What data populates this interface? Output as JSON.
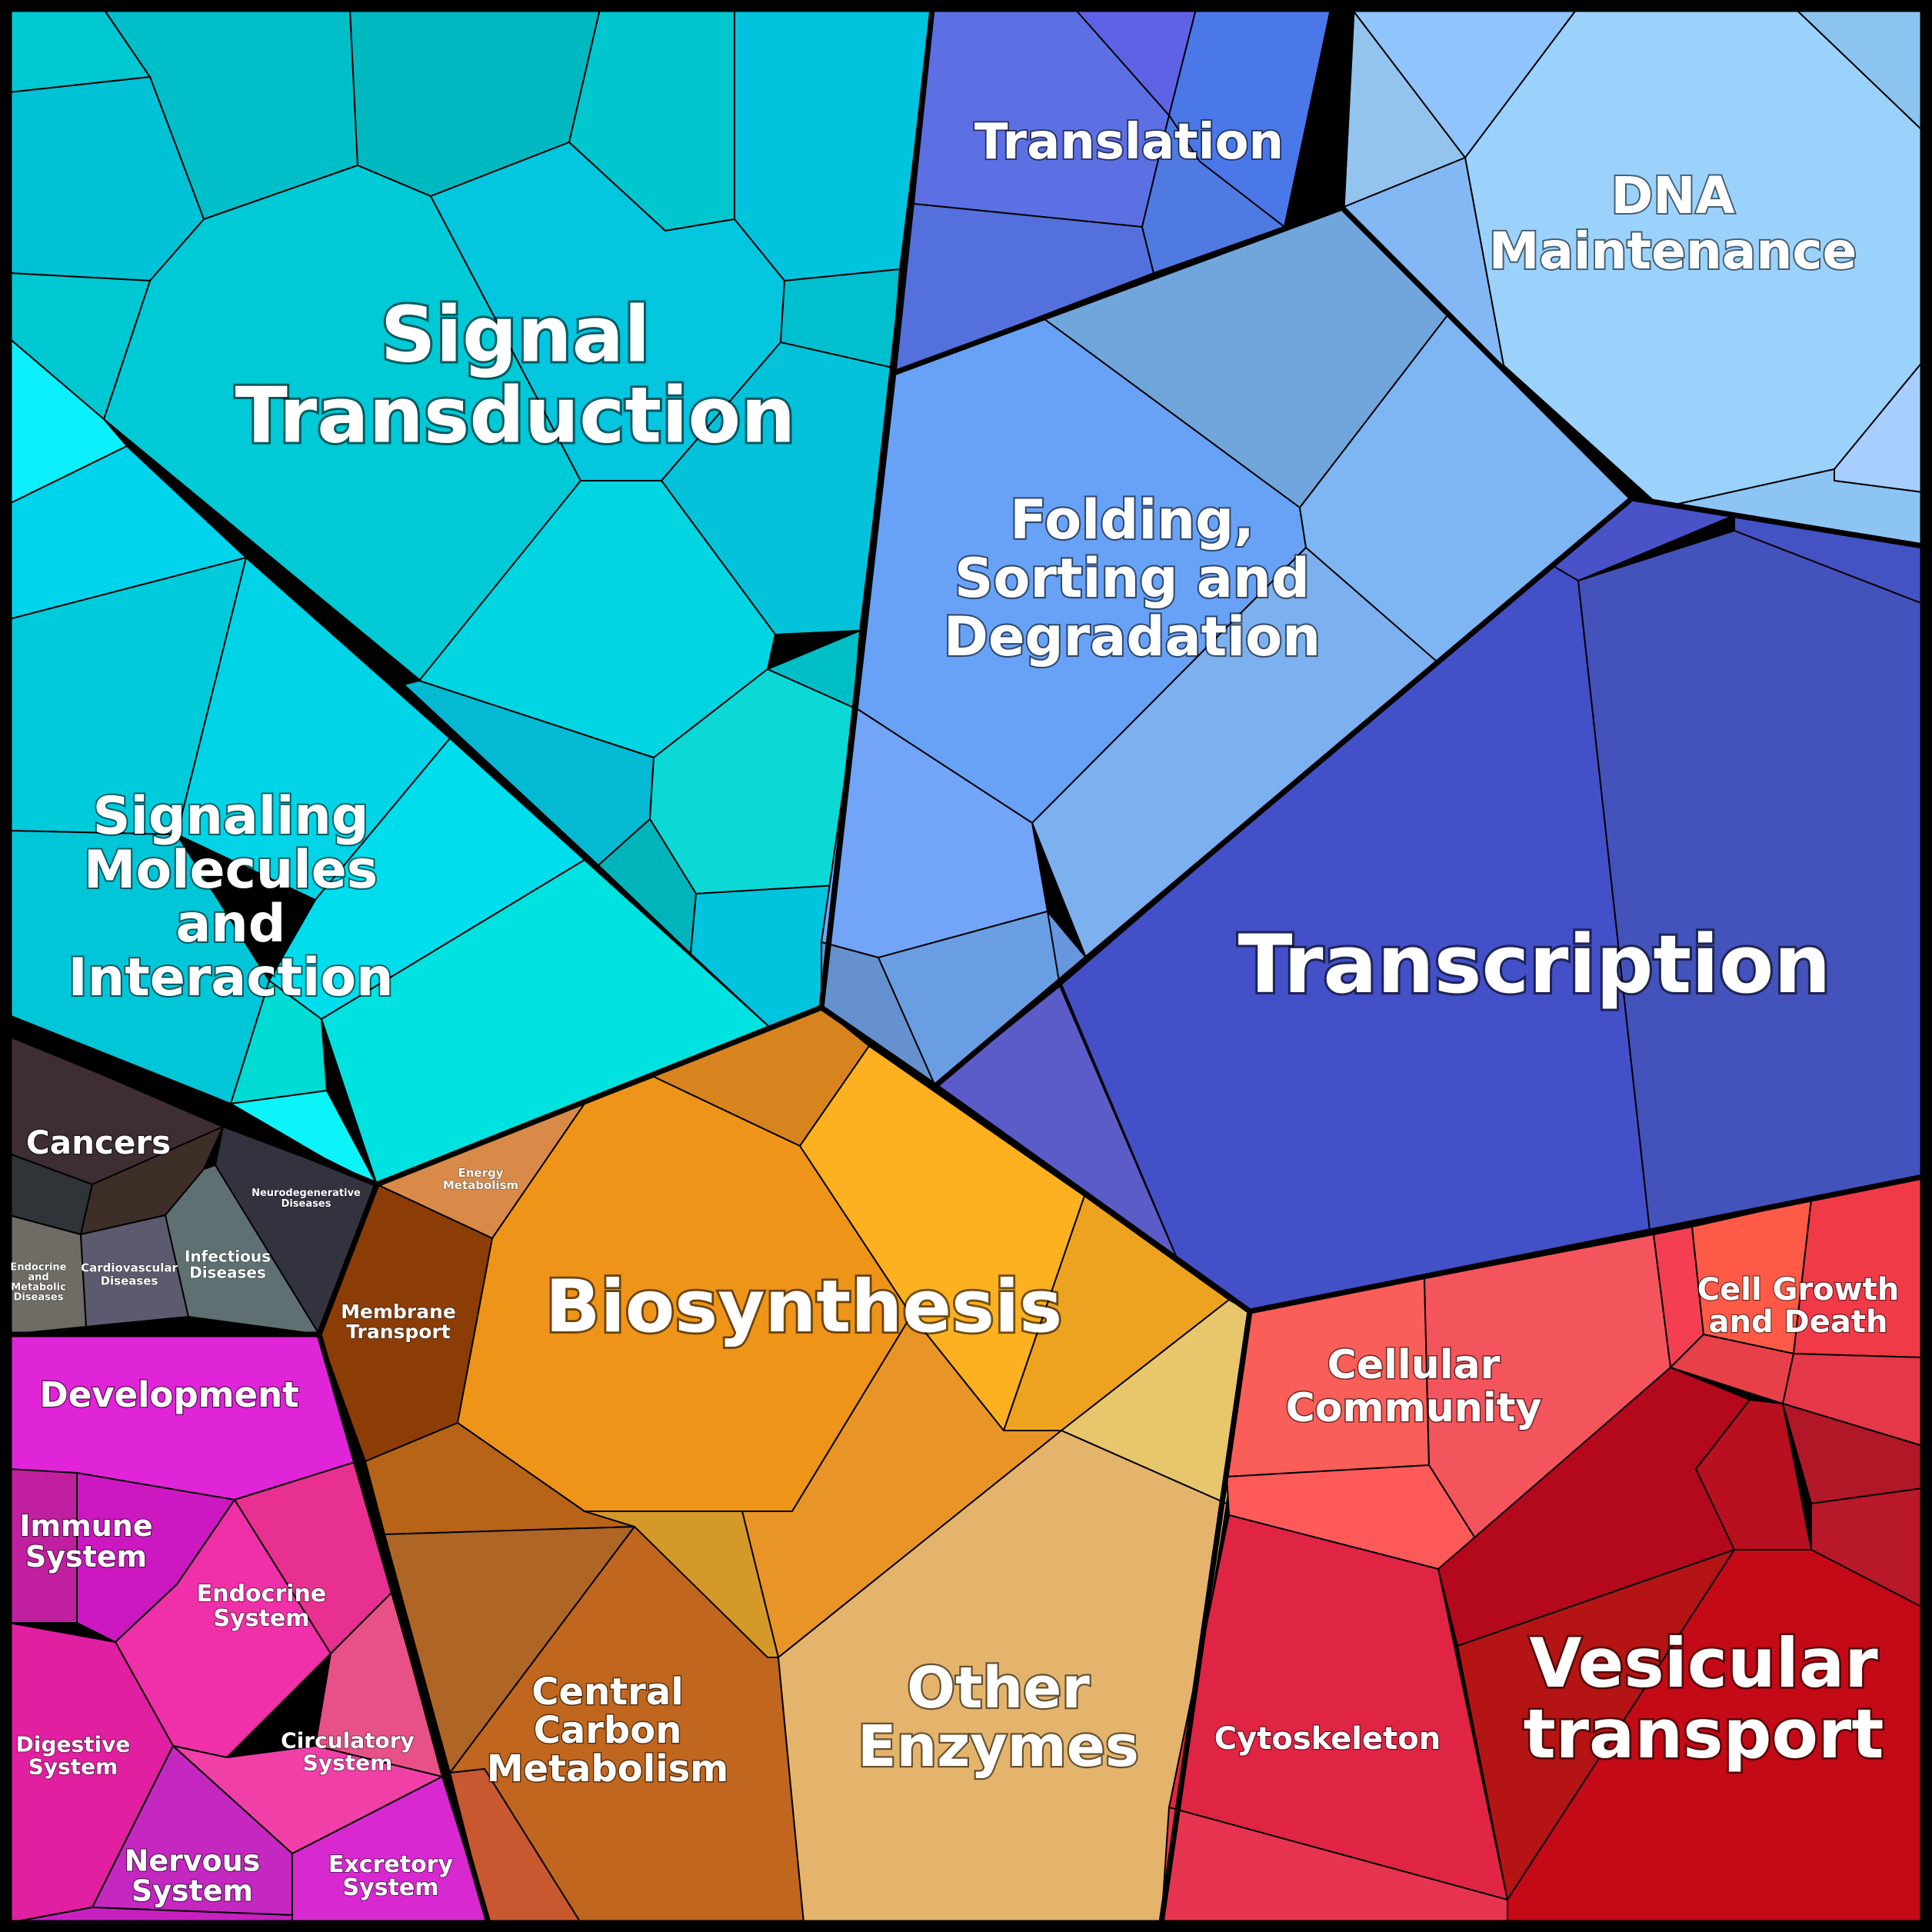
{
  "labels": {
    "signal_transduction": [
      "Signal",
      "Transduction"
    ],
    "signaling_molecules": [
      "Signaling",
      "Molecules",
      "and",
      "Interaction"
    ],
    "translation": [
      "Translation"
    ],
    "dna_maintenance": [
      "DNA",
      "Maintenance"
    ],
    "folding": [
      "Folding,",
      "Sorting and",
      "Degradation"
    ],
    "transcription": [
      "Transcription"
    ],
    "cancers": [
      "Cancers"
    ],
    "neurodegenerative": [
      "Neurodegenerative",
      "Diseases"
    ],
    "endocrine_metabolic": [
      "Endocrine",
      "and",
      "Metabolic",
      "Diseases"
    ],
    "cardiovascular": [
      "Cardiovascular",
      "Diseases"
    ],
    "infectious": [
      "Infectious",
      "Diseases"
    ],
    "energy_metabolism": [
      "Energy",
      "Metabolism"
    ],
    "membrane_transport": [
      "Membrane",
      "Transport"
    ],
    "biosynthesis": [
      "Biosynthesis"
    ],
    "development": [
      "Development"
    ],
    "immune_system": [
      "Immune",
      "System"
    ],
    "endocrine_system": [
      "Endocrine",
      "System"
    ],
    "digestive_system": [
      "Digestive",
      "System"
    ],
    "circulatory_system": [
      "Circulatory",
      "System"
    ],
    "nervous_system": [
      "Nervous",
      "System"
    ],
    "excretory_system": [
      "Excretory",
      "System"
    ],
    "central_carbon": [
      "Central",
      "Carbon",
      "Metabolism"
    ],
    "other_enzymes": [
      "Other",
      "Enzymes"
    ],
    "cellular_community": [
      "Cellular",
      "Community"
    ],
    "cell_growth": [
      "Cell Growth",
      "and Death"
    ],
    "cytoskeleton": [
      "Cytoskeleton"
    ],
    "vesicular_transport": [
      "Vesicular",
      "transport"
    ]
  },
  "colors": {
    "teal": "#00c8d2",
    "blue": "#6aa0f5",
    "indigo": "#4450c8",
    "orange": "#ee9418",
    "brown": "#b8661f",
    "tan": "#e4b46c",
    "red": "#e8304a",
    "magenta": "#e22ad6",
    "dark": "#3a3a44",
    "frame": "#000000"
  }
}
